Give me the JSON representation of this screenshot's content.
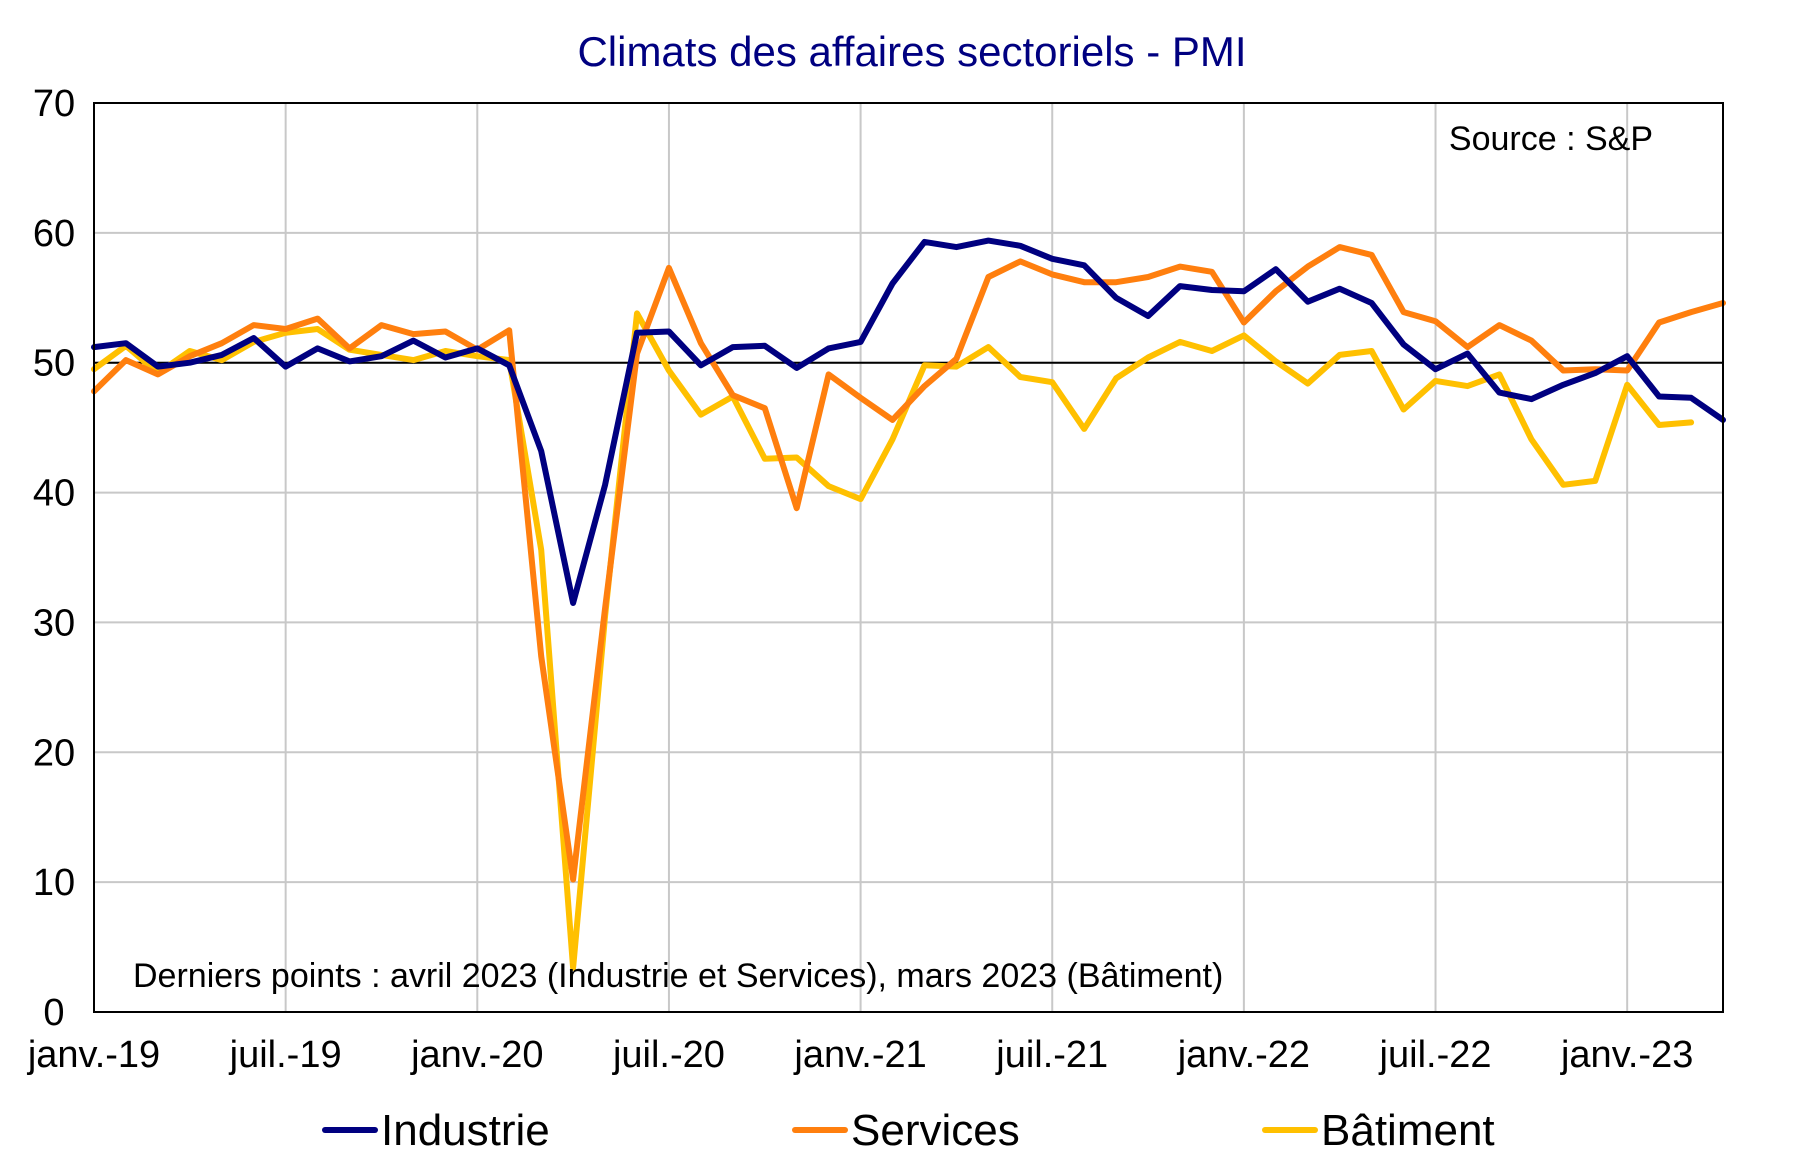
{
  "chart_data": {
    "type": "line",
    "title": "Climats des affaires sectoriels  - PMI",
    "source_note": "Source : S&P",
    "footnote": "Derniers points : avril 2023 (Industrie et Services), mars 2023 (Bâtiment)",
    "x_tick_labels": [
      "janv.-19",
      "juil.-19",
      "janv.-20",
      "juil.-20",
      "janv.-21",
      "juil.-21",
      "janv.-22",
      "juil.-22",
      "janv.-23"
    ],
    "x_tick_months": [
      0,
      6,
      12,
      18,
      24,
      30,
      36,
      42,
      48
    ],
    "x_range_months": [
      0,
      51
    ],
    "ylim": [
      0,
      70
    ],
    "y_ticks": [
      0,
      10,
      20,
      30,
      40,
      50,
      60,
      70
    ],
    "y_tick_labels": [
      "0",
      "10",
      "20",
      "30",
      "40",
      "50",
      "60",
      "70"
    ],
    "reference_line": 50,
    "grid": "vertical",
    "legend_position": "bottom",
    "series": [
      {
        "name": "Industrie",
        "color": "#000080",
        "values": [
          51.2,
          51.5,
          49.7,
          50.0,
          50.6,
          51.9,
          49.7,
          51.1,
          50.1,
          50.5,
          51.7,
          50.4,
          51.1,
          49.8,
          43.2,
          31.5,
          40.6,
          52.3,
          52.4,
          49.8,
          51.2,
          51.3,
          49.6,
          51.1,
          51.6,
          56.1,
          59.3,
          58.9,
          59.4,
          59.0,
          58.0,
          57.5,
          55.0,
          53.6,
          55.9,
          55.6,
          55.5,
          57.2,
          54.7,
          55.7,
          54.6,
          51.4,
          49.5,
          50.7,
          47.7,
          47.2,
          48.3,
          49.2,
          50.5,
          47.4,
          47.3,
          45.6
        ]
      },
      {
        "name": "Services",
        "color": "#ff7f0e",
        "values": [
          47.8,
          50.2,
          49.1,
          50.5,
          51.5,
          52.9,
          52.6,
          53.4,
          51.1,
          52.9,
          52.2,
          52.4,
          51.0,
          52.5,
          27.4,
          10.2,
          31.1,
          50.7,
          57.3,
          51.5,
          47.5,
          46.5,
          38.8,
          49.1,
          47.3,
          45.6,
          48.2,
          50.3,
          56.6,
          57.8,
          56.8,
          56.2,
          56.2,
          56.6,
          57.4,
          57.0,
          53.1,
          55.5,
          57.4,
          58.9,
          58.3,
          53.9,
          53.2,
          51.2,
          52.9,
          51.7,
          49.4,
          49.5,
          49.4,
          53.1,
          53.9,
          54.6
        ]
      },
      {
        "name": "Bâtiment",
        "color": "#ffc000",
        "values": [
          49.5,
          51.3,
          49.2,
          50.9,
          50.2,
          51.6,
          52.3,
          52.6,
          51.0,
          50.6,
          50.2,
          50.9,
          50.5,
          50.2,
          35.6,
          3.4,
          30.5,
          53.8,
          49.4,
          46.0,
          47.4,
          42.6,
          42.7,
          40.5,
          39.5,
          44.1,
          49.8,
          49.7,
          51.2,
          48.9,
          48.5,
          44.9,
          48.8,
          50.4,
          51.6,
          50.9,
          52.1,
          50.1,
          48.4,
          50.6,
          50.9,
          46.4,
          48.6,
          48.2,
          49.1,
          44.1,
          40.6,
          40.9,
          48.3,
          45.2,
          45.4
        ]
      }
    ]
  }
}
